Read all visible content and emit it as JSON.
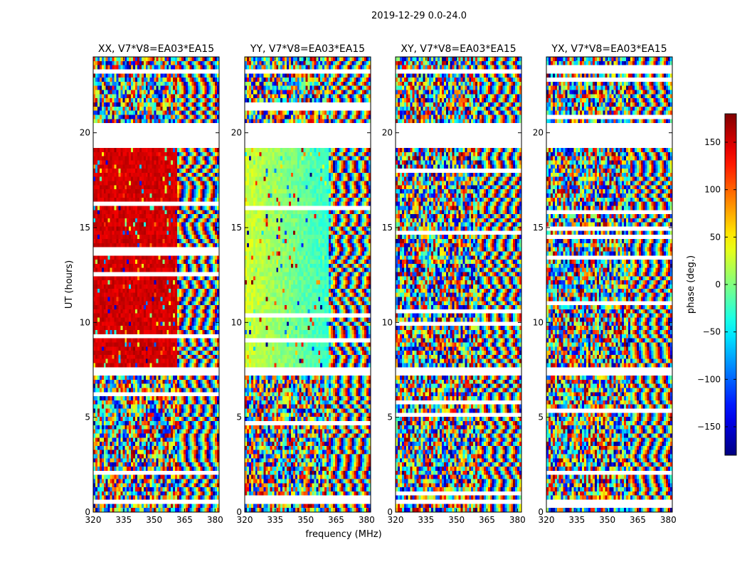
{
  "figure": {
    "suptitle": "2019-12-29 0.0-24.0",
    "xlabel": "frequency (MHz)",
    "ylabel": "UT (hours)"
  },
  "chart_data": {
    "type": "heatmap",
    "title": "2019-12-29 0.0-24.0",
    "xlabel": "frequency (MHz)",
    "ylabel": "UT (hours)",
    "xlim": [
      320,
      382
    ],
    "ylim": [
      0,
      24
    ],
    "xticks": [
      320,
      335,
      350,
      365,
      380
    ],
    "yticks": [
      0,
      5,
      10,
      15,
      20
    ],
    "panels": [
      {
        "title": "XX, V7*V8=EA03*EA15",
        "polarization": "XX",
        "coherent_phase_deg": 150
      },
      {
        "title": "YY, V7*V8=EA03*EA15",
        "polarization": "YY",
        "coherent_phase_deg": 30
      },
      {
        "title": "XY, V7*V8=EA03*EA15",
        "polarization": "XY",
        "coherent_phase_deg": null
      },
      {
        "title": "YX, V7*V8=EA03*EA15",
        "polarization": "YX",
        "coherent_phase_deg": null
      }
    ],
    "colorbar": {
      "label": "phase (deg.)",
      "range": [
        -180,
        180
      ],
      "ticks": [
        -150,
        -100,
        -50,
        0,
        50,
        100,
        150
      ],
      "colormap": "jet"
    },
    "flagged_time_ranges_hours": [
      [
        19.3,
        20.4
      ],
      [
        7.3,
        7.6
      ],
      [
        0.35,
        0.55
      ],
      [
        1.75,
        1.85
      ],
      [
        23.2,
        23.3
      ]
    ]
  }
}
